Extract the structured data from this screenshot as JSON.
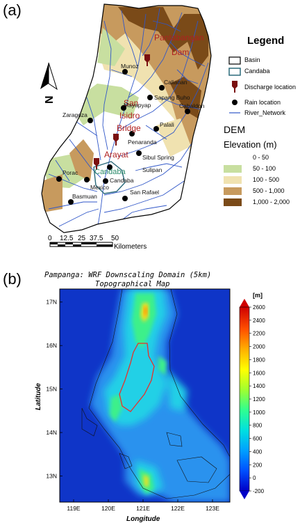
{
  "panel_a": {
    "label": "(a)",
    "legend": {
      "title": "Legend",
      "items": [
        {
          "label": "Basin",
          "symbol": "basin-box"
        },
        {
          "label": "Candaba",
          "symbol": "candaba-box"
        },
        {
          "label": "Discharge location",
          "symbol": "discharge-marker"
        },
        {
          "label": "Rain location",
          "symbol": "rain-dot"
        },
        {
          "label": "River_Network",
          "symbol": "river-line"
        }
      ],
      "dem_title": "DEM",
      "elevation_title": "Elevation (m)",
      "elevation_classes": [
        {
          "label": "0 - 50",
          "color": "#ffffff"
        },
        {
          "label": "50 - 100",
          "color": "#c8dfa0"
        },
        {
          "label": "100 - 500",
          "color": "#f0e2b0"
        },
        {
          "label": "500 - 1,000",
          "color": "#c79a5e"
        },
        {
          "label": "1,000 - 2,000",
          "color": "#7a4a18"
        }
      ]
    },
    "discharge_labels": [
      "Pantabangan",
      "Dam",
      "San",
      "Isidro",
      "Bridge",
      "Arayat"
    ],
    "rain_labels": [
      "Munoz",
      "Calianan",
      "Sapang Buho",
      "Cabaldon",
      "Mayapyap",
      "Zaragoza",
      "Palali",
      "Penaranda",
      "Sibul Spring",
      "Sulipan",
      "Candaba",
      "Porac",
      "Mexico",
      "San Rafael",
      "Basmuan"
    ],
    "candaba_label": "Candaba",
    "north_label": "N",
    "scale_ticks": [
      "0",
      "12.5",
      "25",
      "37.5",
      "50"
    ],
    "scale_unit": "Kilometers"
  },
  "panel_b": {
    "label": "(b)",
    "title_line1": "Pampanga: WRF Downscaling Domain (5km)",
    "title_line2": "Topographical Map",
    "x_axis_title": "Longitude",
    "y_axis_title": "Latitude",
    "colorbar_unit": "[m]"
  },
  "chart_data": {
    "type": "heatmap",
    "title": "Pampanga: WRF Downscaling Domain (5km) Topographical Map",
    "xlabel": "Longitude",
    "ylabel": "Latitude",
    "x_ticks": [
      "119E",
      "120E",
      "121E",
      "122E",
      "123E"
    ],
    "y_ticks": [
      "13N",
      "14N",
      "15N",
      "16N",
      "17N"
    ],
    "xlim": [
      118.6,
      123.5
    ],
    "ylim": [
      12.4,
      17.3
    ],
    "colorbar_ticks": [
      "-200",
      "0",
      "200",
      "400",
      "600",
      "800",
      "1000",
      "1200",
      "1400",
      "1600",
      "1800",
      "2000",
      "2200",
      "2400",
      "2600"
    ],
    "colorbar_range": [
      -200,
      2600
    ],
    "colormap": [
      "#0000c8",
      "#0050ff",
      "#00a0ff",
      "#00e0e0",
      "#30ff90",
      "#a0ff30",
      "#ffff00",
      "#ffb000",
      "#ff5000",
      "#d00000"
    ]
  }
}
